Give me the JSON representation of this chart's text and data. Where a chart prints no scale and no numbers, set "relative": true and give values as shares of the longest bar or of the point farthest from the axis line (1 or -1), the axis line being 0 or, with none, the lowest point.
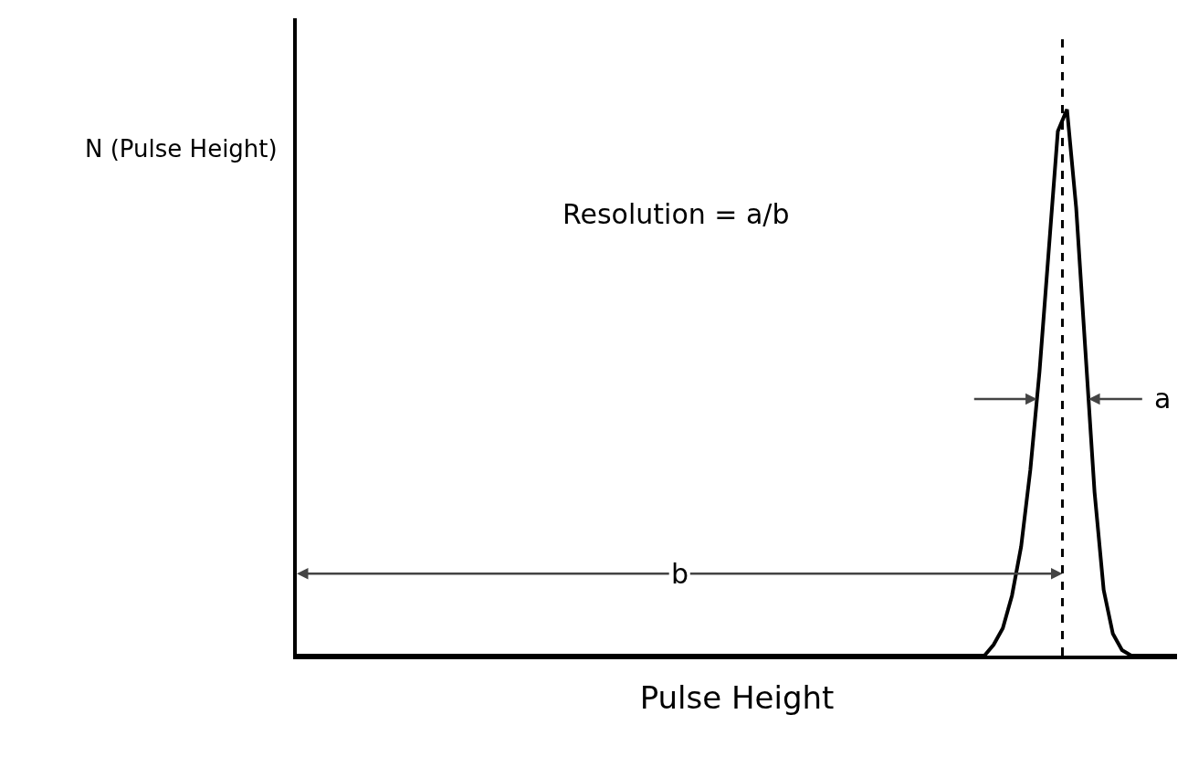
{
  "chart_data": {
    "type": "line",
    "relative": true,
    "xlabel": "Pulse Height",
    "ylabel": "N (Pulse Height)",
    "color": "#000000",
    "line_style": "solid",
    "categories": [
      null,
      null,
      null,
      null,
      null,
      null,
      null,
      null,
      null,
      null,
      null,
      null,
      null,
      null,
      null,
      null,
      null,
      null,
      null,
      null,
      null,
      null,
      null,
      null,
      null,
      null,
      null,
      null,
      null,
      null,
      null,
      null,
      null,
      null,
      null,
      null,
      null,
      null,
      null,
      null,
      null,
      null,
      null,
      null,
      null,
      null,
      null,
      null,
      null,
      null,
      null,
      null,
      null,
      null,
      null,
      null,
      null,
      null,
      null,
      null,
      null,
      null,
      null,
      null,
      null,
      null,
      null,
      null,
      null,
      null,
      null,
      null,
      null,
      null,
      null,
      null,
      null,
      null,
      null,
      null,
      null,
      null,
      null,
      null,
      null,
      null,
      null,
      null,
      null,
      null,
      null,
      null,
      null,
      null,
      null,
      null,
      null
    ],
    "values": [
      0,
      0,
      0,
      0,
      0,
      0,
      0,
      0,
      0,
      0,
      0,
      0,
      0,
      0,
      0,
      0,
      0,
      0,
      0,
      0,
      0,
      0,
      0,
      0,
      0,
      0,
      0,
      0,
      0,
      0,
      0,
      0,
      0,
      0,
      0,
      0,
      0,
      0,
      0,
      0,
      0,
      0,
      0,
      0,
      0,
      0,
      0,
      0,
      0,
      0,
      0,
      0,
      0,
      0,
      0,
      0,
      0,
      0,
      0,
      0,
      0,
      0,
      0,
      0,
      0,
      0,
      0,
      0,
      0,
      0,
      0,
      0,
      0,
      0,
      0,
      0,
      0.02,
      0.05,
      0.11,
      0.2,
      0.34,
      0.52,
      0.74,
      0.96,
      1,
      0.82,
      0.56,
      0.3,
      0.12,
      0.04,
      0.01,
      0,
      0,
      0,
      0,
      0,
      0
    ],
    "annotations": [
      "Resolution = a/b",
      "a",
      "b"
    ]
  }
}
